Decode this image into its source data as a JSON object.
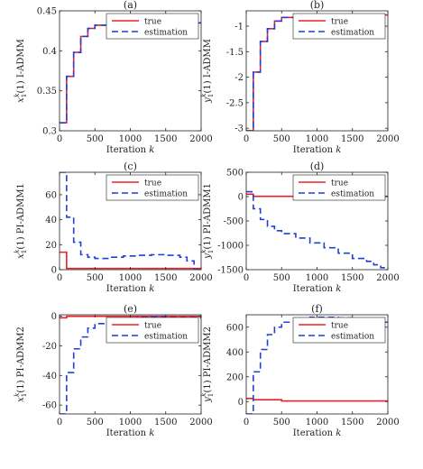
{
  "chart_data": [
    {
      "panel": "(a)",
      "type": "line",
      "xlabel": "Iteration k",
      "ylabel": "x1k(1) I-ADMM",
      "xlim": [
        0,
        2000
      ],
      "ylim": [
        0.3,
        0.45
      ],
      "xticks": [
        0,
        500,
        1000,
        1500,
        2000
      ],
      "yticks": [
        0.3,
        0.35,
        0.4,
        0.45
      ],
      "xtick_labels": [
        "0",
        "500",
        "1000",
        "1500",
        "2000"
      ],
      "ytick_labels": [
        "0.3",
        "0.35",
        "0.4",
        "0.45"
      ],
      "legend": "top-right",
      "series": [
        {
          "name": "true",
          "color": "#e8202a",
          "dash": "solid",
          "x": [
            0,
            100,
            100,
            200,
            200,
            300,
            300,
            400,
            400,
            500,
            500,
            700,
            700,
            2000
          ],
          "y": [
            0.31,
            0.31,
            0.368,
            0.368,
            0.398,
            0.398,
            0.418,
            0.418,
            0.428,
            0.428,
            0.432,
            0.432,
            0.435,
            0.435
          ]
        },
        {
          "name": "estimation",
          "color": "#1f3fd6",
          "dash": "dashed",
          "x": [
            0,
            100,
            100,
            200,
            200,
            300,
            300,
            400,
            400,
            500,
            500,
            700,
            700,
            2000
          ],
          "y": [
            0.31,
            0.31,
            0.368,
            0.368,
            0.398,
            0.398,
            0.418,
            0.418,
            0.428,
            0.428,
            0.432,
            0.432,
            0.435,
            0.435
          ]
        }
      ]
    },
    {
      "panel": "(b)",
      "type": "line",
      "xlabel": "Iteration k",
      "ylabel": "y1k(1) I-ADMM",
      "xlim": [
        0,
        2000
      ],
      "ylim": [
        -3.05,
        -0.7
      ],
      "xticks": [
        0,
        500,
        1000,
        1500,
        2000
      ],
      "yticks": [
        -3,
        -2.5,
        -2,
        -1.5,
        -1
      ],
      "xtick_labels": [
        "0",
        "500",
        "1000",
        "1500",
        "2000"
      ],
      "ytick_labels": [
        "-3",
        "-2.5",
        "-2",
        "-1.5",
        "-1"
      ],
      "legend": "top-right",
      "series": [
        {
          "name": "true",
          "color": "#e8202a",
          "dash": "solid",
          "x": [
            0,
            100,
            100,
            200,
            200,
            300,
            300,
            400,
            400,
            500,
            500,
            700,
            700,
            1000,
            1000,
            2000
          ],
          "y": [
            -3.05,
            -3.05,
            -1.9,
            -1.9,
            -1.3,
            -1.3,
            -1.05,
            -1.05,
            -0.9,
            -0.9,
            -0.83,
            -0.83,
            -0.8,
            -0.8,
            -0.78,
            -0.78
          ]
        },
        {
          "name": "estimation",
          "color": "#1f3fd6",
          "dash": "dashed",
          "x": [
            0,
            100,
            100,
            200,
            200,
            300,
            300,
            400,
            400,
            500,
            500,
            700,
            700,
            1000,
            1000,
            2000
          ],
          "y": [
            -3.05,
            -3.05,
            -1.9,
            -1.9,
            -1.3,
            -1.3,
            -1.05,
            -1.05,
            -0.9,
            -0.9,
            -0.83,
            -0.83,
            -0.8,
            -0.8,
            -0.78,
            -0.78
          ]
        }
      ]
    },
    {
      "panel": "(c)",
      "type": "line",
      "xlabel": "Iteration k",
      "ylabel": "x1k(1) PI-ADMM1",
      "xlim": [
        0,
        2000
      ],
      "ylim": [
        0,
        78
      ],
      "xticks": [
        0,
        500,
        1000,
        1500,
        2000
      ],
      "yticks": [
        0,
        20,
        40,
        60
      ],
      "xtick_labels": [
        "0",
        "500",
        "1000",
        "1500",
        "2000"
      ],
      "ytick_labels": [
        "0",
        "20",
        "40",
        "60"
      ],
      "legend": "top-right",
      "series": [
        {
          "name": "true",
          "color": "#e8202a",
          "dash": "solid",
          "x": [
            0,
            100,
            100,
            2000
          ],
          "y": [
            14,
            14,
            1,
            1
          ]
        },
        {
          "name": "estimation",
          "color": "#1f3fd6",
          "dash": "dashed",
          "x": [
            0,
            100,
            100,
            200,
            200,
            300,
            300,
            400,
            400,
            500,
            500,
            700,
            700,
            900,
            900,
            1100,
            1100,
            1300,
            1300,
            1500,
            1500,
            1700,
            1700,
            1800,
            1800,
            1900,
            1900,
            2000
          ],
          "y": [
            78,
            78,
            42,
            42,
            22,
            22,
            12,
            12,
            10,
            10,
            9,
            9,
            10,
            10,
            11,
            11,
            11.5,
            11.5,
            12,
            12,
            11.5,
            11.5,
            10,
            10,
            7,
            7,
            0,
            0
          ]
        }
      ]
    },
    {
      "panel": "(d)",
      "type": "line",
      "xlabel": "Iteration k",
      "ylabel": "y1k(1) PI-ADMM1",
      "xlim": [
        0,
        2000
      ],
      "ylim": [
        -1500,
        500
      ],
      "xticks": [
        0,
        500,
        1000,
        1500,
        2000
      ],
      "yticks": [
        -1500,
        -1000,
        -500,
        0,
        500
      ],
      "xtick_labels": [
        "0",
        "500",
        "1000",
        "1500",
        "2000"
      ],
      "ytick_labels": [
        "-1500",
        "-1000",
        "-500",
        "0",
        "500"
      ],
      "legend": "top-right",
      "series": [
        {
          "name": "true",
          "color": "#e8202a",
          "dash": "solid",
          "x": [
            0,
            100,
            100,
            2000
          ],
          "y": [
            50,
            50,
            5,
            5
          ]
        },
        {
          "name": "estimation",
          "color": "#1f3fd6",
          "dash": "dashed",
          "x": [
            0,
            100,
            100,
            200,
            200,
            300,
            300,
            400,
            400,
            500,
            500,
            700,
            700,
            900,
            900,
            1100,
            1100,
            1300,
            1300,
            1500,
            1500,
            1700,
            1700,
            1800,
            1800,
            1900,
            1900,
            2000
          ],
          "y": [
            100,
            100,
            -250,
            -250,
            -470,
            -470,
            -610,
            -610,
            -700,
            -700,
            -760,
            -760,
            -850,
            -850,
            -950,
            -950,
            -1050,
            -1050,
            -1160,
            -1160,
            -1270,
            -1270,
            -1330,
            -1330,
            -1400,
            -1400,
            -1460,
            -1460
          ]
        }
      ]
    },
    {
      "panel": "(e)",
      "type": "line",
      "xlabel": "Iteration k",
      "ylabel": "x1k(1) PI-ADMM2",
      "xlim": [
        0,
        2000
      ],
      "ylim": [
        -66,
        1
      ],
      "xticks": [
        0,
        500,
        1000,
        1500,
        2000
      ],
      "yticks": [
        -60,
        -40,
        -20,
        0
      ],
      "xtick_labels": [
        "0",
        "500",
        "1000",
        "1500",
        "2000"
      ],
      "ytick_labels": [
        "-60",
        "-40",
        "-20",
        "0"
      ],
      "legend": "top-right",
      "series": [
        {
          "name": "true",
          "color": "#e8202a",
          "dash": "solid",
          "x": [
            0,
            100,
            100,
            2000
          ],
          "y": [
            -1,
            -1,
            0,
            0
          ]
        },
        {
          "name": "estimation",
          "color": "#1f3fd6",
          "dash": "dashed",
          "x": [
            0,
            100,
            100,
            200,
            200,
            300,
            300,
            400,
            400,
            500,
            500,
            700,
            700,
            900,
            900,
            1100,
            1100,
            1300,
            1300,
            1500,
            1500,
            2000
          ],
          "y": [
            -66,
            -66,
            -38,
            -38,
            -22,
            -22,
            -14,
            -14,
            -8,
            -8,
            -5,
            -5,
            -3,
            -3,
            -1.5,
            -1.5,
            -0.8,
            -0.8,
            -0.5,
            -0.5,
            -1,
            -1
          ]
        }
      ]
    },
    {
      "panel": "(f)",
      "type": "line",
      "xlabel": "Iteration k",
      "ylabel": "y1k(1) PI-ADMM2",
      "xlim": [
        0,
        2000
      ],
      "ylim": [
        -100,
        700
      ],
      "xticks": [
        0,
        500,
        1000,
        1500,
        2000
      ],
      "yticks": [
        0,
        200,
        400,
        600
      ],
      "xtick_labels": [
        "0",
        "500",
        "1000",
        "1500",
        "2000"
      ],
      "ytick_labels": [
        "0",
        "200",
        "400",
        "600"
      ],
      "legend": "top-right",
      "series": [
        {
          "name": "true",
          "color": "#e8202a",
          "dash": "solid",
          "x": [
            0,
            100,
            100,
            500,
            500,
            2000
          ],
          "y": [
            25,
            25,
            15,
            15,
            5,
            5
          ]
        },
        {
          "name": "estimation",
          "color": "#1f3fd6",
          "dash": "dashed",
          "x": [
            0,
            100,
            100,
            200,
            200,
            300,
            300,
            400,
            400,
            500,
            500,
            700,
            700,
            900,
            900,
            1100,
            1100,
            1300,
            1300,
            1500,
            1500,
            1700,
            1700,
            1900,
            1900,
            2000
          ],
          "y": [
            -100,
            -100,
            240,
            240,
            420,
            420,
            540,
            540,
            600,
            600,
            640,
            640,
            665,
            665,
            680,
            680,
            680,
            680,
            675,
            675,
            660,
            660,
            650,
            650,
            640,
            640
          ]
        }
      ]
    }
  ]
}
